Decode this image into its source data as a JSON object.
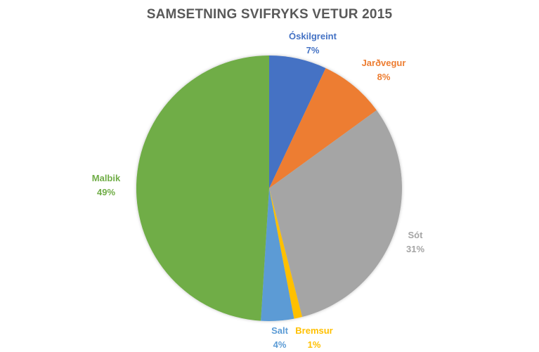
{
  "chart_data": {
    "type": "pie",
    "title": "SAMSETNING SVIFRYKS VETUR 2015",
    "categories": [
      "Óskilgreint",
      "Jarðvegur",
      "Sót",
      "Bremsur",
      "Salt",
      "Malbik"
    ],
    "values": [
      7,
      8,
      31,
      1,
      4,
      49
    ],
    "value_labels": [
      "7%",
      "8%",
      "31%",
      "1%",
      "4%",
      "49%"
    ],
    "colors": [
      "#4472C4",
      "#ED7D31",
      "#A5A5A5",
      "#FFC000",
      "#5B9BD5",
      "#70AD47"
    ],
    "legend": "none",
    "data_labels": "category name and percentage, outside end",
    "start_angle_deg": 0,
    "direction": "clockwise"
  },
  "labels": {
    "oskilgreint": {
      "name": "Óskilgreint",
      "pct": "7%"
    },
    "jardvegur": {
      "name": "Jarðvegur",
      "pct": "8%"
    },
    "sot": {
      "name": "Sót",
      "pct": "31%"
    },
    "bremsur": {
      "name": "Bremsur",
      "pct": "1%"
    },
    "salt": {
      "name": "Salt",
      "pct": "4%"
    },
    "malbik": {
      "name": "Malbik",
      "pct": "49%"
    }
  }
}
